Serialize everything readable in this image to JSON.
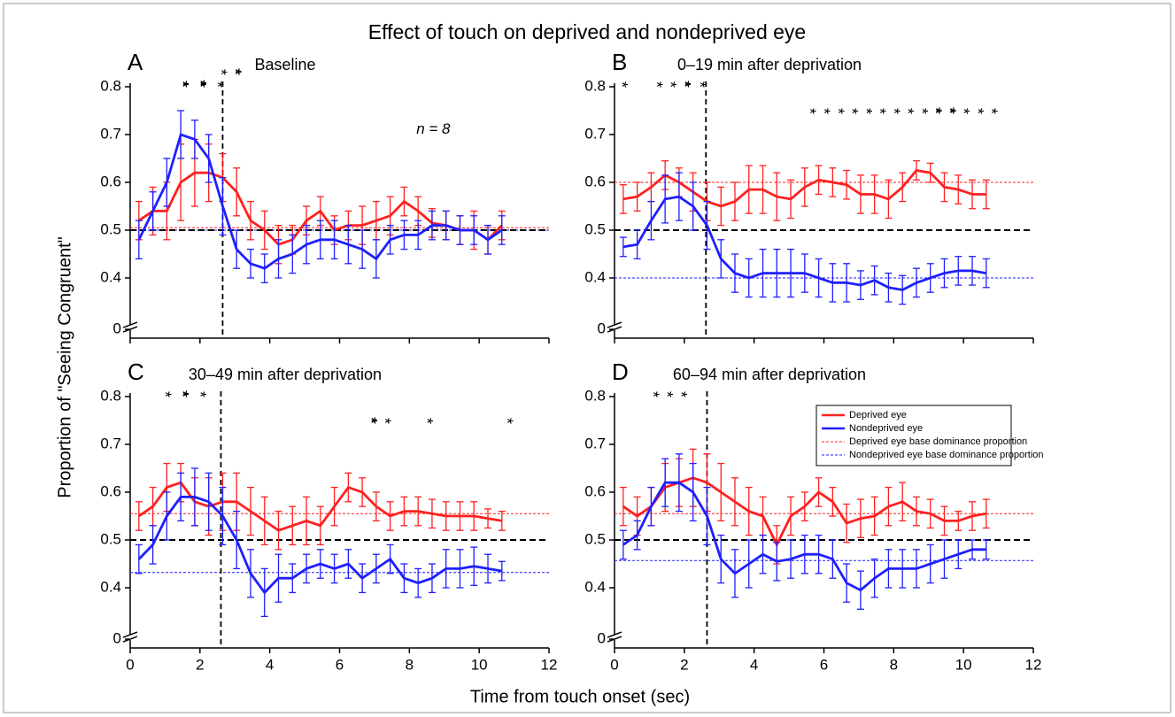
{
  "title": "Effect of touch on deprived and nondeprived eye",
  "x_label": "Time from touch onset (sec)",
  "y_label": "Proportion of \"Seeing Congruent\"",
  "chart_data": [
    {
      "type": "line",
      "panel": "A",
      "subtitle": "Baseline",
      "note": "n = 8",
      "x": [
        0.25,
        0.65,
        1.05,
        1.45,
        1.85,
        2.25,
        2.65,
        3.05,
        3.45,
        3.85,
        4.25,
        4.65,
        5.05,
        5.45,
        5.85,
        6.25,
        6.65,
        7.05,
        7.45,
        7.85,
        8.25,
        8.65,
        9.05,
        9.45,
        9.85,
        10.25,
        10.65
      ],
      "series": [
        {
          "color": "#ff2020",
          "values": [
            0.52,
            0.54,
            0.54,
            0.6,
            0.62,
            0.62,
            0.61,
            0.58,
            0.52,
            0.5,
            0.47,
            0.48,
            0.52,
            0.54,
            0.5,
            0.51,
            0.51,
            0.52,
            0.53,
            0.56,
            0.54,
            0.515,
            0.51,
            0.5,
            0.5,
            0.48,
            0.51
          ],
          "errors": [
            0.04,
            0.05,
            0.06,
            0.08,
            0.07,
            0.06,
            0.05,
            0.05,
            0.04,
            0.04,
            0.04,
            0.03,
            0.03,
            0.03,
            0.03,
            0.03,
            0.04,
            0.04,
            0.04,
            0.03,
            0.03,
            0.03,
            0.03,
            0.03,
            0.04,
            0.03,
            0.03
          ]
        },
        {
          "color": "#1f1fff",
          "values": [
            0.48,
            0.54,
            0.6,
            0.7,
            0.69,
            0.65,
            0.55,
            0.46,
            0.43,
            0.42,
            0.44,
            0.45,
            0.47,
            0.48,
            0.48,
            0.47,
            0.46,
            0.44,
            0.48,
            0.49,
            0.49,
            0.51,
            0.51,
            0.5,
            0.5,
            0.48,
            0.5
          ],
          "errors": [
            0.04,
            0.04,
            0.05,
            0.05,
            0.04,
            0.05,
            0.06,
            0.04,
            0.03,
            0.03,
            0.04,
            0.04,
            0.04,
            0.04,
            0.04,
            0.04,
            0.04,
            0.04,
            0.03,
            0.03,
            0.03,
            0.03,
            0.03,
            0.03,
            0.03,
            0.03,
            0.03
          ]
        }
      ],
      "reference_lines": [
        {
          "value": 0.505,
          "color": "#ff2020"
        },
        {
          "value": 0.5,
          "color": "#1f1fff"
        }
      ],
      "hline": 0.5,
      "vline": 2.65,
      "stars": [
        {
          "x": 1.5,
          "text": "**",
          "color": "#1f1fff"
        },
        {
          "x": 2.0,
          "text": "***",
          "color": "#1f1fff"
        },
        {
          "x": 2.5,
          "text": "*",
          "color": "#1f1fff"
        },
        {
          "x": 2.6,
          "text": "*",
          "color": "#ff2020",
          "raised": true
        },
        {
          "x": 3.0,
          "text": "**",
          "color": "#ff2020",
          "raised": true
        }
      ],
      "xlim": [
        0,
        12
      ],
      "xticks": [
        0,
        2,
        4,
        6,
        8,
        10,
        12
      ],
      "xtick_labels": false,
      "ylim": [
        0,
        0.8
      ],
      "yticks": [
        0,
        0.4,
        0.5,
        0.6,
        0.7,
        0.8
      ],
      "ybreak": [
        0,
        0.3
      ]
    },
    {
      "type": "line",
      "panel": "B",
      "subtitle": "0–19 min after deprivation",
      "x": [
        0.25,
        0.65,
        1.05,
        1.45,
        1.85,
        2.25,
        2.65,
        3.05,
        3.45,
        3.85,
        4.25,
        4.65,
        5.05,
        5.45,
        5.85,
        6.25,
        6.65,
        7.05,
        7.45,
        7.85,
        8.25,
        8.65,
        9.05,
        9.45,
        9.85,
        10.25,
        10.65
      ],
      "series": [
        {
          "color": "#ff2020",
          "values": [
            0.565,
            0.57,
            0.59,
            0.615,
            0.6,
            0.58,
            0.56,
            0.55,
            0.56,
            0.585,
            0.585,
            0.57,
            0.565,
            0.59,
            0.605,
            0.6,
            0.595,
            0.575,
            0.575,
            0.565,
            0.59,
            0.625,
            0.62,
            0.59,
            0.585,
            0.575,
            0.575
          ],
          "errors": [
            0.03,
            0.03,
            0.03,
            0.03,
            0.03,
            0.04,
            0.04,
            0.04,
            0.04,
            0.05,
            0.05,
            0.05,
            0.04,
            0.04,
            0.03,
            0.03,
            0.03,
            0.04,
            0.04,
            0.04,
            0.03,
            0.02,
            0.02,
            0.03,
            0.03,
            0.03,
            0.03
          ]
        },
        {
          "color": "#1f1fff",
          "values": [
            0.465,
            0.47,
            0.52,
            0.565,
            0.57,
            0.55,
            0.51,
            0.44,
            0.41,
            0.4,
            0.41,
            0.41,
            0.41,
            0.41,
            0.4,
            0.39,
            0.39,
            0.385,
            0.395,
            0.38,
            0.375,
            0.39,
            0.4,
            0.41,
            0.415,
            0.415,
            0.41
          ],
          "errors": [
            0.02,
            0.03,
            0.04,
            0.05,
            0.05,
            0.05,
            0.05,
            0.04,
            0.04,
            0.04,
            0.05,
            0.05,
            0.05,
            0.04,
            0.04,
            0.04,
            0.04,
            0.03,
            0.03,
            0.03,
            0.03,
            0.03,
            0.03,
            0.03,
            0.03,
            0.03,
            0.03
          ]
        }
      ],
      "reference_lines": [
        {
          "value": 0.6,
          "color": "#ff2020"
        },
        {
          "value": 0.4,
          "color": "#1f1fff"
        }
      ],
      "hline": 0.5,
      "vline": 2.62,
      "stars": [
        {
          "x": 0.2,
          "text": "*",
          "color": "#1f1fff"
        },
        {
          "x": 1.2,
          "text": "*",
          "color": "#1f1fff"
        },
        {
          "x": 1.6,
          "text": "*",
          "color": "#1f1fff"
        },
        {
          "x": 2.0,
          "text": "**",
          "color": "#1f1fff"
        },
        {
          "x": 2.45,
          "text": "*",
          "color": "#1f1fff"
        },
        {
          "x": 5.6,
          "text": "*",
          "color": "#000000"
        },
        {
          "x": 6.0,
          "text": "*",
          "color": "#000000"
        },
        {
          "x": 6.4,
          "text": "*",
          "color": "#000000"
        },
        {
          "x": 6.8,
          "text": "*",
          "color": "#000000"
        },
        {
          "x": 7.2,
          "text": "*",
          "color": "#000000"
        },
        {
          "x": 7.6,
          "text": "*",
          "color": "#000000"
        },
        {
          "x": 8.0,
          "text": "*",
          "color": "#000000"
        },
        {
          "x": 8.4,
          "text": "*",
          "color": "#000000"
        },
        {
          "x": 8.8,
          "text": "*",
          "color": "#000000"
        },
        {
          "x": 9.2,
          "text": "**",
          "color": "#000000"
        },
        {
          "x": 9.6,
          "text": "**",
          "color": "#000000"
        },
        {
          "x": 10.0,
          "text": "*",
          "color": "#000000"
        },
        {
          "x": 10.4,
          "text": "*",
          "color": "#000000"
        },
        {
          "x": 10.8,
          "text": "*",
          "color": "#000000"
        }
      ],
      "xlim": [
        0,
        12
      ],
      "xticks": [
        0,
        2,
        4,
        6,
        8,
        10,
        12
      ],
      "xtick_labels": false,
      "ylim": [
        0,
        0.8
      ],
      "yticks": [
        0,
        0.4,
        0.5,
        0.6,
        0.7,
        0.8
      ],
      "ybreak": [
        0,
        0.3
      ]
    },
    {
      "type": "line",
      "panel": "C",
      "subtitle": "30–49 min after deprivation",
      "x": [
        0.25,
        0.65,
        1.05,
        1.45,
        1.85,
        2.25,
        2.65,
        3.05,
        3.45,
        3.85,
        4.25,
        4.65,
        5.05,
        5.45,
        5.85,
        6.25,
        6.65,
        7.05,
        7.45,
        7.85,
        8.25,
        8.65,
        9.05,
        9.45,
        9.85,
        10.25,
        10.65
      ],
      "series": [
        {
          "color": "#ff2020",
          "values": [
            0.55,
            0.57,
            0.61,
            0.62,
            0.58,
            0.57,
            0.58,
            0.58,
            0.56,
            0.54,
            0.52,
            0.53,
            0.54,
            0.53,
            0.57,
            0.61,
            0.6,
            0.57,
            0.55,
            0.56,
            0.56,
            0.555,
            0.55,
            0.55,
            0.55,
            0.545,
            0.54
          ],
          "errors": [
            0.03,
            0.04,
            0.05,
            0.04,
            0.05,
            0.06,
            0.06,
            0.06,
            0.05,
            0.05,
            0.04,
            0.04,
            0.05,
            0.04,
            0.04,
            0.03,
            0.03,
            0.03,
            0.03,
            0.03,
            0.03,
            0.03,
            0.03,
            0.03,
            0.03,
            0.02,
            0.02
          ]
        },
        {
          "color": "#1f1fff",
          "values": [
            0.46,
            0.49,
            0.55,
            0.59,
            0.59,
            0.58,
            0.55,
            0.5,
            0.43,
            0.39,
            0.42,
            0.42,
            0.44,
            0.45,
            0.44,
            0.45,
            0.42,
            0.44,
            0.46,
            0.42,
            0.41,
            0.42,
            0.44,
            0.44,
            0.445,
            0.44,
            0.435
          ],
          "errors": [
            0.03,
            0.04,
            0.05,
            0.05,
            0.06,
            0.06,
            0.06,
            0.06,
            0.05,
            0.05,
            0.05,
            0.03,
            0.03,
            0.03,
            0.03,
            0.03,
            0.03,
            0.03,
            0.03,
            0.03,
            0.03,
            0.03,
            0.04,
            0.04,
            0.04,
            0.03,
            0.02
          ]
        }
      ],
      "reference_lines": [
        {
          "value": 0.555,
          "color": "#ff2020"
        },
        {
          "value": 0.432,
          "color": "#1f1fff"
        }
      ],
      "hline": 0.5,
      "vline": 2.6,
      "stars": [
        {
          "x": 1.0,
          "text": "*",
          "color": "#1f1fff"
        },
        {
          "x": 1.5,
          "text": "**",
          "color": "#1f1fff"
        },
        {
          "x": 2.0,
          "text": "*",
          "color": "#1f1fff"
        },
        {
          "x": 6.9,
          "text": "**",
          "color": "#000000"
        },
        {
          "x": 7.3,
          "text": "*",
          "color": "#000000"
        },
        {
          "x": 8.5,
          "text": "*",
          "color": "#000000"
        },
        {
          "x": 10.8,
          "text": "*",
          "color": "#000000"
        }
      ],
      "xlim": [
        0,
        12
      ],
      "xticks": [
        0,
        2,
        4,
        6,
        8,
        10,
        12
      ],
      "xtick_labels": true,
      "ylim": [
        0,
        0.8
      ],
      "yticks": [
        0,
        0.4,
        0.5,
        0.6,
        0.7,
        0.8
      ],
      "ybreak": [
        0,
        0.3
      ]
    },
    {
      "type": "line",
      "panel": "D",
      "subtitle": "60–94 min after deprivation",
      "x": [
        0.25,
        0.65,
        1.05,
        1.45,
        1.85,
        2.25,
        2.65,
        3.05,
        3.45,
        3.85,
        4.25,
        4.65,
        5.05,
        5.45,
        5.85,
        6.25,
        6.65,
        7.05,
        7.45,
        7.85,
        8.25,
        8.65,
        9.05,
        9.45,
        9.85,
        10.25,
        10.65
      ],
      "series": [
        {
          "name": "Deprived eye",
          "color": "#ff2020",
          "values": [
            0.57,
            0.55,
            0.57,
            0.61,
            0.62,
            0.63,
            0.62,
            0.6,
            0.58,
            0.56,
            0.55,
            0.49,
            0.55,
            0.57,
            0.6,
            0.58,
            0.535,
            0.545,
            0.55,
            0.57,
            0.58,
            0.56,
            0.555,
            0.54,
            0.54,
            0.55,
            0.555
          ],
          "errors": [
            0.04,
            0.04,
            0.04,
            0.05,
            0.05,
            0.06,
            0.06,
            0.06,
            0.05,
            0.05,
            0.04,
            0.04,
            0.04,
            0.03,
            0.03,
            0.03,
            0.04,
            0.04,
            0.04,
            0.04,
            0.04,
            0.03,
            0.03,
            0.03,
            0.02,
            0.03,
            0.03
          ]
        },
        {
          "name": "Nondeprived eye",
          "color": "#1f1fff",
          "values": [
            0.49,
            0.51,
            0.57,
            0.62,
            0.62,
            0.6,
            0.55,
            0.46,
            0.43,
            0.45,
            0.47,
            0.455,
            0.46,
            0.47,
            0.47,
            0.46,
            0.41,
            0.395,
            0.42,
            0.44,
            0.44,
            0.44,
            0.45,
            0.46,
            0.47,
            0.48,
            0.48
          ],
          "errors": [
            0.03,
            0.03,
            0.04,
            0.05,
            0.06,
            0.06,
            0.06,
            0.05,
            0.05,
            0.05,
            0.04,
            0.04,
            0.04,
            0.04,
            0.04,
            0.04,
            0.04,
            0.04,
            0.04,
            0.04,
            0.04,
            0.04,
            0.04,
            0.04,
            0.03,
            0.02,
            0.02
          ]
        }
      ],
      "reference_lines": [
        {
          "name": "Deprived eye base dominance proportion",
          "value": 0.555,
          "color": "#ff2020"
        },
        {
          "name": "Nondeprived eye base dominance proportion",
          "value": 0.457,
          "color": "#1f1fff"
        }
      ],
      "hline": 0.5,
      "vline": 2.65,
      "stars": [
        {
          "x": 1.1,
          "text": "*",
          "color": "#1f1fff"
        },
        {
          "x": 1.5,
          "text": "*",
          "color": "#1f1fff"
        },
        {
          "x": 1.9,
          "text": "*",
          "color": "#1f1fff"
        },
        {
          "x": 6.0,
          "text": "*",
          "color": "#000000"
        }
      ],
      "legend": "upper right",
      "xlim": [
        0,
        12
      ],
      "xticks": [
        0,
        2,
        4,
        6,
        8,
        10,
        12
      ],
      "xtick_labels": true,
      "ylim": [
        0,
        0.8
      ],
      "yticks": [
        0,
        0.4,
        0.5,
        0.6,
        0.7,
        0.8
      ],
      "ybreak": [
        0,
        0.3
      ]
    }
  ]
}
